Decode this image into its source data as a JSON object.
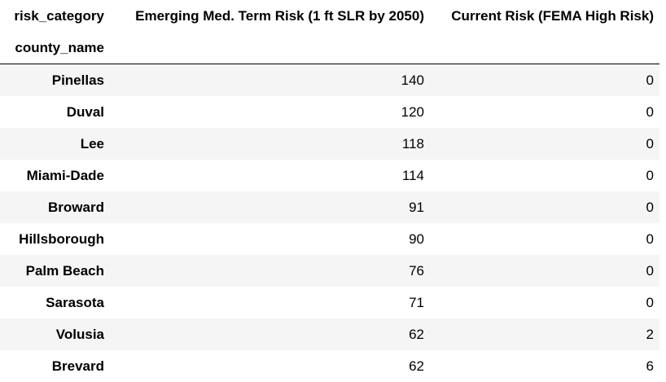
{
  "table": {
    "columns_name": "risk_category",
    "index_name": "county_name",
    "columns": [
      "Emerging Med. Term Risk (1 ft SLR by 2050)",
      "Current Risk (FEMA High Risk)"
    ],
    "rows": [
      {
        "county": "Pinellas",
        "values": [
          "140",
          "0"
        ]
      },
      {
        "county": "Duval",
        "values": [
          "120",
          "0"
        ]
      },
      {
        "county": "Lee",
        "values": [
          "118",
          "0"
        ]
      },
      {
        "county": "Miami-Dade",
        "values": [
          "114",
          "0"
        ]
      },
      {
        "county": "Broward",
        "values": [
          "91",
          "0"
        ]
      },
      {
        "county": "Hillsborough",
        "values": [
          "90",
          "0"
        ]
      },
      {
        "county": "Palm Beach",
        "values": [
          "76",
          "0"
        ]
      },
      {
        "county": "Sarasota",
        "values": [
          "71",
          "0"
        ]
      },
      {
        "county": "Volusia",
        "values": [
          "62",
          "2"
        ]
      },
      {
        "county": "Brevard",
        "values": [
          "62",
          "6"
        ]
      }
    ]
  }
}
